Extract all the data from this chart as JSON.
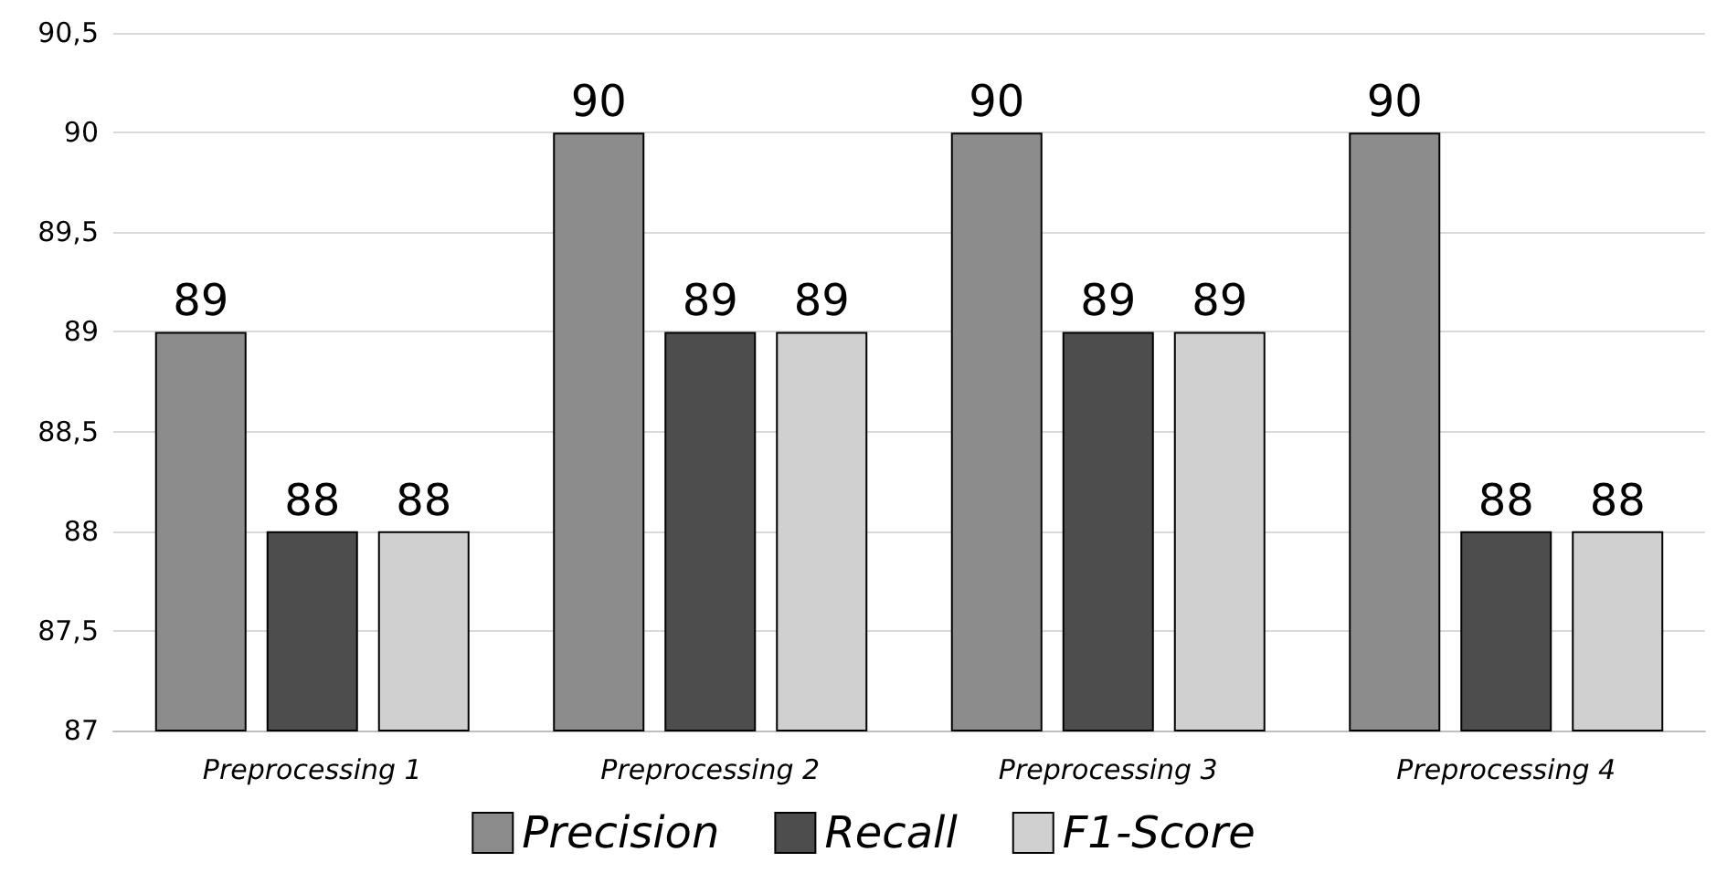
{
  "chart_data": {
    "type": "bar",
    "categories": [
      "Preprocessing 1",
      "Preprocessing 2",
      "Preprocessing 3",
      "Preprocessing 4"
    ],
    "series": [
      {
        "name": "Precision",
        "color": "#8c8c8c",
        "values": [
          89,
          90,
          90,
          90
        ]
      },
      {
        "name": "Recall",
        "color": "#4d4d4d",
        "values": [
          88,
          89,
          89,
          88
        ]
      },
      {
        "name": "F1-Score",
        "color": "#d0d0d0",
        "values": [
          88,
          89,
          89,
          88
        ]
      }
    ],
    "ylim": [
      87,
      90.5
    ],
    "yticks": [
      87,
      {
        "value": 87.5,
        "label": "87,5"
      },
      88,
      {
        "value": 88.5,
        "label": "88,5"
      },
      89,
      {
        "value": 89.5,
        "label": "89,5"
      },
      90,
      {
        "value": 90.5,
        "label": "90,5"
      }
    ],
    "grid": "y",
    "legend": "bottom",
    "data_labels": true
  }
}
